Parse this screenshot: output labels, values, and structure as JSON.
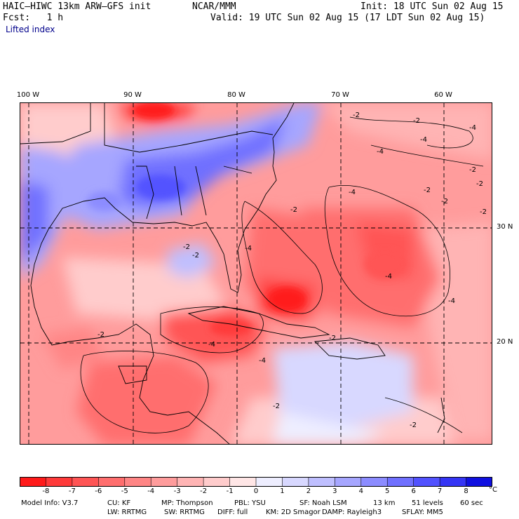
{
  "header": {
    "model_line": "HAIC–HIWC 13km ARW–GFS init",
    "org": "NCAR/MMM",
    "init": "Init: 18 UTC Sun 02 Aug 15",
    "fcst": "Fcst:   1 h",
    "valid": "Valid: 19 UTC Sun 02 Aug 15 (17 LDT Sun 02 Aug 15)",
    "field": "Lifted index"
  },
  "axes": {
    "longitudes": [
      {
        "label": "100 W",
        "value": -100
      },
      {
        "label": "90 W",
        "value": -90
      },
      {
        "label": "80 W",
        "value": -80
      },
      {
        "label": "70 W",
        "value": -70
      },
      {
        "label": "60 W",
        "value": -60
      }
    ],
    "latitudes": [
      {
        "label": "30 N",
        "value": 30
      },
      {
        "label": "20 N",
        "value": 20
      }
    ]
  },
  "contour_labels": [
    "-2",
    "-4"
  ],
  "colorbar": {
    "unit": "°C",
    "ticks": [
      "-8",
      "-7",
      "-6",
      "-5",
      "-4",
      "-3",
      "-2",
      "-1",
      "0",
      "1",
      "2",
      "3",
      "4",
      "5",
      "6",
      "7",
      "8"
    ],
    "colors": [
      "#ff1a1a",
      "#ff3a3a",
      "#ff5555",
      "#ff6e6e",
      "#ff8585",
      "#ff9c9c",
      "#ffb4b4",
      "#ffcccc",
      "#ffe6e6",
      "#eeeeff",
      "#d8d8ff",
      "#bfbfff",
      "#a6a6ff",
      "#8c8cff",
      "#7070ff",
      "#5252ff",
      "#3535f5",
      "#1010e0"
    ]
  },
  "model_info": {
    "line1": [
      {
        "k": "Model Info: V3.7"
      },
      {
        "k": "CU: KF"
      },
      {
        "k": "MP: Thompson"
      },
      {
        "k": "PBL: YSU"
      },
      {
        "k": "SF: Noah LSM"
      },
      {
        "k": "13 km"
      },
      {
        "k": "51 levels"
      },
      {
        "k": "60 sec"
      }
    ],
    "line2": [
      {
        "k": "LW: RRTMG"
      },
      {
        "k": "SW: RRTMG"
      },
      {
        "k": "DIFF: full"
      },
      {
        "k": "KM: 2D Smagor"
      },
      {
        "k": "DAMP: Rayleigh3"
      },
      {
        "k": "SFLAY: MM5"
      }
    ]
  }
}
